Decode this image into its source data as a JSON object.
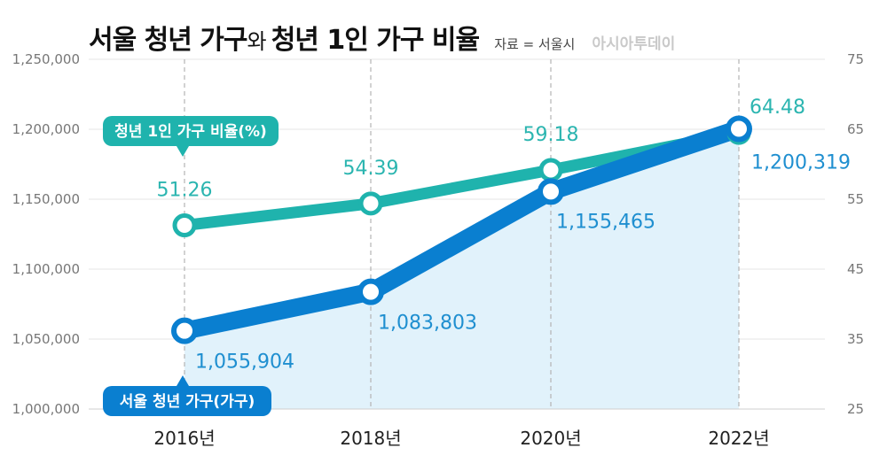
{
  "title": {
    "part1": "서울 청년 가구",
    "connector": "와",
    "part2": "청년 1인 가구 비율",
    "source": "자료 = 서울시",
    "logo": "아시아투데이"
  },
  "colors": {
    "households": "#0a7fd0",
    "ratio": "#1fb3ad",
    "area_fill": "#e1f2fb",
    "grid": "#b3b3b3"
  },
  "chart_data": {
    "type": "line",
    "categories": [
      "2016년",
      "2018년",
      "2020년",
      "2022년"
    ],
    "left_axis": {
      "min": 1000000,
      "max": 1250000,
      "ticks": [
        "1,000,000",
        "1,050,000",
        "1,100,000",
        "1,150,000",
        "1,200,000",
        "1,250,000"
      ]
    },
    "right_axis": {
      "min": 25,
      "max": 75,
      "ticks": [
        "25",
        "35",
        "45",
        "55",
        "65",
        "75"
      ]
    },
    "series": [
      {
        "name": "서울 청년 가구(가구)",
        "axis": "left",
        "values": [
          1055904,
          1083803,
          1155465,
          1200319
        ],
        "labels": [
          "1,055,904",
          "1,083,803",
          "1,155,465",
          "1,200,319"
        ]
      },
      {
        "name": "청년 1인 가구 비율(%)",
        "axis": "right",
        "values": [
          51.26,
          54.39,
          59.18,
          64.48
        ],
        "labels": [
          "51.26",
          "54.39",
          "59.18",
          "64.48"
        ]
      }
    ],
    "grid": "vertical dashed lines at each category"
  }
}
